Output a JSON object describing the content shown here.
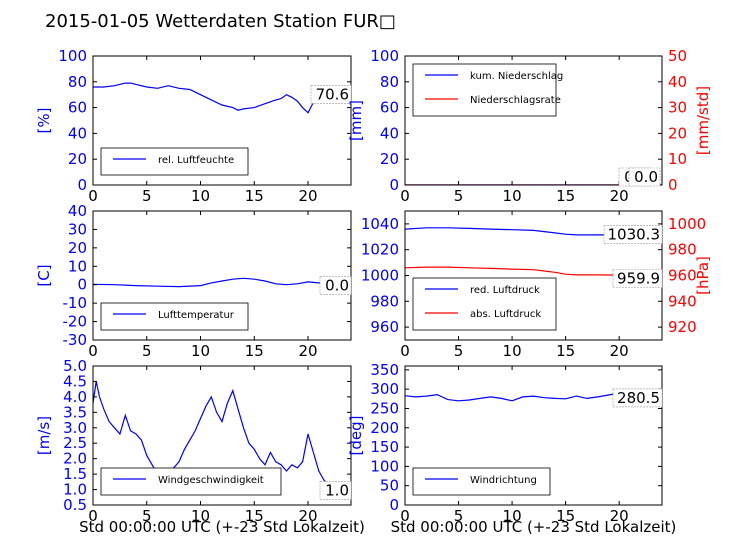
{
  "title": "2015-01-05 Wetterdaten Station FUR□",
  "colors": {
    "blue": "#0000ff",
    "red": "#ff0000",
    "axis": "#000000"
  },
  "chart_data": [
    {
      "id": "humidity",
      "type": "line",
      "ylabel": "[%]",
      "xlim": [
        0,
        24
      ],
      "xticks": [
        0,
        5,
        10,
        15,
        20
      ],
      "ylim": [
        0,
        100
      ],
      "yticks": [
        0,
        20,
        40,
        60,
        80,
        100
      ],
      "legend": {
        "placement": "lower-left",
        "entries": [
          "rel. Luftfeuchte"
        ]
      },
      "value_box": "70.6",
      "series": [
        {
          "name": "rel. Luftfeuchte",
          "color": "#0000ff",
          "axis": "left",
          "x": [
            0,
            1,
            2,
            3,
            3.5,
            4,
            5,
            6,
            7,
            8,
            9,
            10,
            11,
            12,
            13,
            13.5,
            14,
            15,
            16,
            17,
            17.5,
            18,
            18.5,
            19,
            19.5,
            20,
            20.5,
            21,
            22,
            23,
            24
          ],
          "y": [
            76,
            76,
            77,
            79,
            79,
            78,
            76,
            75,
            77,
            75,
            74,
            70,
            66,
            62,
            60,
            58,
            59,
            60,
            63,
            66,
            67,
            70,
            68,
            65,
            60,
            56,
            64,
            68,
            70,
            71,
            71
          ]
        }
      ]
    },
    {
      "id": "precip",
      "type": "line",
      "ylabel": "[mm]",
      "ylabel_right": "[mm/std]",
      "xlim": [
        0,
        24
      ],
      "xticks": [
        0,
        5,
        10,
        15,
        20
      ],
      "ylim": [
        0,
        100
      ],
      "yticks": [
        0,
        20,
        40,
        60,
        80,
        100
      ],
      "ylim_right": [
        0,
        50
      ],
      "yticks_right": [
        0,
        10,
        20,
        30,
        40,
        50
      ],
      "legend": {
        "placement": "upper-left",
        "entries": [
          "kum. Niederschlag",
          "Niederschlagsrate"
        ]
      },
      "value_box": "0.0",
      "value_box2": "0.0",
      "series": [
        {
          "name": "kum. Niederschlag",
          "color": "#0000ff",
          "axis": "left",
          "x": [
            0,
            24
          ],
          "y": [
            0,
            0
          ]
        },
        {
          "name": "Niederschlagsrate",
          "color": "#ff0000",
          "axis": "right",
          "x": [
            0,
            24
          ],
          "y": [
            0,
            0
          ]
        }
      ]
    },
    {
      "id": "temperature",
      "type": "line",
      "ylabel": "[C]",
      "xlim": [
        0,
        24
      ],
      "xticks": [
        0,
        5,
        10,
        15,
        20
      ],
      "ylim": [
        -30,
        40
      ],
      "yticks": [
        -30,
        -20,
        -10,
        0,
        10,
        20,
        30,
        40
      ],
      "legend": {
        "placement": "lower-left",
        "entries": [
          "Lufttemperatur"
        ]
      },
      "value_box": "0.0",
      "series": [
        {
          "name": "Lufttemperatur",
          "color": "#0000ff",
          "axis": "left",
          "x": [
            0,
            2,
            4,
            6,
            8,
            10,
            11,
            12,
            13,
            14,
            15,
            16,
            17,
            18,
            19,
            20,
            21,
            22,
            23,
            24
          ],
          "y": [
            0.2,
            0,
            -0.5,
            -0.8,
            -1,
            -0.5,
            1,
            2,
            3,
            3.5,
            3,
            2,
            0.5,
            0,
            0.5,
            1.5,
            1,
            0.5,
            0.2,
            0
          ]
        }
      ]
    },
    {
      "id": "pressure",
      "type": "line",
      "ylabel_right": "[hPa]",
      "xlim": [
        0,
        24
      ],
      "xticks": [
        0,
        5,
        10,
        15,
        20
      ],
      "ylim": [
        950,
        1050
      ],
      "yticks": [
        960,
        980,
        1000,
        1020,
        1040
      ],
      "ylim_right": [
        910,
        1010
      ],
      "yticks_right": [
        920,
        940,
        960,
        980,
        1000
      ],
      "legend": {
        "placement": "lower-left",
        "entries": [
          "red. Luftdruck",
          "abs. Luftdruck"
        ]
      },
      "value_box": "1030.3",
      "value_box2": "959.9",
      "series": [
        {
          "name": "red. Luftdruck",
          "color": "#0000ff",
          "axis": "left",
          "x": [
            0,
            2,
            4,
            6,
            8,
            10,
            12,
            13,
            14,
            15,
            16,
            18,
            20,
            22,
            24
          ],
          "y": [
            1036,
            1037,
            1037,
            1036.5,
            1036,
            1035.5,
            1035,
            1034,
            1033,
            1032,
            1031.5,
            1031.5,
            1031.5,
            1031,
            1030.3
          ]
        },
        {
          "name": "abs. Luftdruck",
          "color": "#ff0000",
          "axis": "right",
          "x": [
            0,
            2,
            4,
            6,
            8,
            10,
            12,
            13,
            14,
            15,
            16,
            18,
            20,
            22,
            24
          ],
          "y": [
            966,
            966.5,
            966.5,
            966,
            965.5,
            965,
            964.5,
            963.5,
            962.5,
            961,
            960.5,
            960.5,
            960.3,
            960,
            959.9
          ]
        }
      ]
    },
    {
      "id": "windspeed",
      "type": "line",
      "ylabel": "[m/s]",
      "xlabel": "Std 00:00:00 UTC (+-23 Std Lokalzeit)",
      "xlim": [
        0,
        24
      ],
      "xticks": [
        0,
        5,
        10,
        15,
        20
      ],
      "ylim": [
        0.5,
        5.0
      ],
      "yticks": [
        0.5,
        1.0,
        1.5,
        2.0,
        2.5,
        3.0,
        3.5,
        4.0,
        4.5,
        5.0
      ],
      "legend": {
        "placement": "lower-left",
        "entries": [
          "Windgeschwindigkeit"
        ]
      },
      "value_box": "1.0",
      "series": [
        {
          "name": "Windgeschwindigkeit",
          "color": "#0000ff",
          "axis": "left",
          "x": [
            0,
            0.3,
            0.6,
            1,
            1.5,
            2,
            2.5,
            3,
            3.5,
            4,
            4.5,
            5,
            5.5,
            6,
            6.5,
            7,
            7.5,
            8,
            8.5,
            9,
            9.5,
            10,
            10.5,
            11,
            11.5,
            12,
            12.5,
            13,
            13.5,
            14,
            14.5,
            15,
            15.5,
            16,
            16.5,
            17,
            17.5,
            18,
            18.5,
            19,
            19.5,
            20,
            20.5,
            21,
            21.5,
            22,
            22.5,
            23,
            23.5,
            24
          ],
          "y": [
            3.8,
            4.5,
            4.0,
            3.6,
            3.2,
            3.0,
            2.8,
            3.4,
            2.9,
            2.8,
            2.6,
            2.1,
            1.8,
            1.5,
            1.3,
            1.6,
            1.7,
            1.9,
            2.3,
            2.6,
            2.9,
            3.3,
            3.7,
            4.0,
            3.5,
            3.2,
            3.8,
            4.2,
            3.6,
            3.0,
            2.5,
            2.3,
            2.0,
            1.8,
            2.2,
            1.9,
            1.8,
            1.6,
            1.8,
            1.7,
            1.9,
            2.8,
            2.2,
            1.6,
            1.3,
            1.1,
            1.0,
            0.9,
            1.0,
            1.0
          ]
        }
      ]
    },
    {
      "id": "winddir",
      "type": "line",
      "ylabel": "[deg]",
      "xlabel": "Std 00:00:00 UTC (+-23 Std Lokalzeit)",
      "xlim": [
        0,
        24
      ],
      "xticks": [
        0,
        5,
        10,
        15,
        20
      ],
      "ylim": [
        0,
        360
      ],
      "yticks": [
        0,
        50,
        100,
        150,
        200,
        250,
        300,
        350
      ],
      "legend": {
        "placement": "lower-left",
        "entries": [
          "Windrichtung"
        ]
      },
      "value_box": "280.5",
      "series": [
        {
          "name": "Windrichtung",
          "color": "#0000ff",
          "axis": "left",
          "x": [
            0,
            1,
            2,
            3,
            4,
            5,
            6,
            7,
            8,
            9,
            10,
            11,
            12,
            13,
            14,
            15,
            16,
            17,
            18,
            19,
            20,
            21,
            22,
            23,
            24
          ],
          "y": [
            283,
            280,
            282,
            286,
            273,
            270,
            272,
            276,
            280,
            276,
            270,
            280,
            282,
            278,
            276,
            275,
            282,
            276,
            280,
            285,
            290,
            282,
            278,
            282,
            280
          ]
        }
      ]
    }
  ]
}
